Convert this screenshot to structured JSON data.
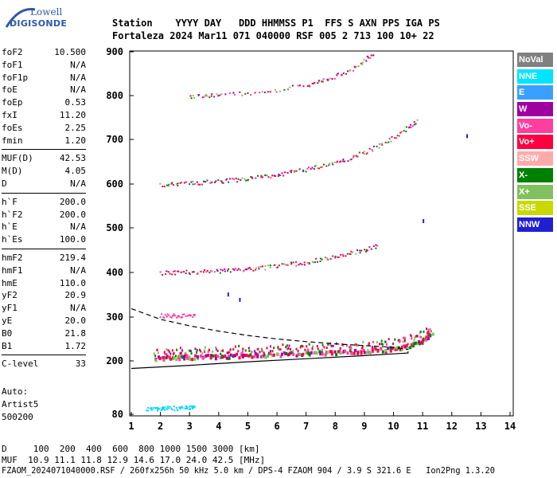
{
  "logo": {
    "line1": "Lowell",
    "line2": "DIGISONDE"
  },
  "header": {
    "row1": "Station    YYYY DAY   DDD HHMMSS P1  FFS S AXN PPS IGA PS",
    "row2": "Fortaleza 2024 Mar11 071 040000 RSF 005 2 713 100 10+ 22"
  },
  "params": {
    "group1": [
      {
        "name": "foF2",
        "value": "10.500"
      },
      {
        "name": "foF1",
        "value": "N/A"
      },
      {
        "name": "foF1p",
        "value": "N/A"
      },
      {
        "name": "foE",
        "value": "N/A"
      },
      {
        "name": "foEp",
        "value": "0.53"
      },
      {
        "name": "fxI",
        "value": "11.20"
      },
      {
        "name": "foEs",
        "value": "2.25"
      },
      {
        "name": "fmin",
        "value": "1.20"
      }
    ],
    "group2": [
      {
        "name": "MUF(D)",
        "value": "42.53"
      },
      {
        "name": "M(D)",
        "value": "4.05"
      },
      {
        "name": "D",
        "value": "N/A"
      }
    ],
    "group3": [
      {
        "name": "h`F",
        "value": "200.0"
      },
      {
        "name": "h`F2",
        "value": "200.0"
      },
      {
        "name": "h`E",
        "value": "N/A"
      },
      {
        "name": "h`Es",
        "value": "100.0"
      }
    ],
    "group4": [
      {
        "name": "hmF2",
        "value": "219.4"
      },
      {
        "name": "hmF1",
        "value": "N/A"
      },
      {
        "name": "hmE",
        "value": "110.0"
      },
      {
        "name": "yF2",
        "value": "20.9"
      },
      {
        "name": "yF1",
        "value": "N/A"
      },
      {
        "name": "yE",
        "value": "20.0"
      },
      {
        "name": "B0",
        "value": "21.8"
      },
      {
        "name": "B1",
        "value": "1.72"
      }
    ],
    "group5": [
      {
        "name": "C-level",
        "value": "33"
      }
    ]
  },
  "auto": {
    "line1": "Auto:",
    "line2": "Artist5",
    "line3": "500200"
  },
  "legend": [
    {
      "label": "NoVal",
      "bg": "#808080",
      "fg": "#ffffff"
    },
    {
      "label": "NNE",
      "bg": "#00e5ff",
      "fg": "#ffffff"
    },
    {
      "label": "E",
      "bg": "#3aa0ff",
      "fg": "#ffffff"
    },
    {
      "label": "W",
      "bg": "#a000a0",
      "fg": "#ffffff"
    },
    {
      "label": "Vo-",
      "bg": "#ff3fa0",
      "fg": "#ffffff"
    },
    {
      "label": "Vo+",
      "bg": "#ff0040",
      "fg": "#ffffff"
    },
    {
      "label": "SSW",
      "bg": "#ffaaaa",
      "fg": "#ffffff"
    },
    {
      "label": "X-",
      "bg": "#008000",
      "fg": "#ffffff"
    },
    {
      "label": "X+",
      "bg": "#80c060",
      "fg": "#ffffff"
    },
    {
      "label": "SSE",
      "bg": "#c8d800",
      "fg": "#ffffff"
    },
    {
      "label": "NNW",
      "bg": "#2020d0",
      "fg": "#ffffff"
    }
  ],
  "footer": {
    "distance_row": "D     100  200  400  600  800 1000 1500 3000 [km]",
    "muf_row": "MUF  10.9 11.1 11.8 12.9 14.6 17.0 24.0 42.5 [MHz]",
    "file_row": "FZAOM_2024071040000.RSF / 260fx256h 50 kHz 5.0 km / DPS-4 FZAOM 904 / 3.9 S 321.6 E   Ion2Png 1.3.20"
  },
  "chart_data": {
    "type": "scatter",
    "title": "",
    "xlabel": "",
    "ylabel": "",
    "xlim": [
      1,
      14
    ],
    "ylim": [
      80,
      900
    ],
    "x_ticks": [
      1,
      2,
      3,
      4,
      5,
      6,
      7,
      8,
      9,
      10,
      11,
      12,
      13,
      14
    ],
    "y_ticks": [
      80,
      200,
      300,
      400,
      500,
      600,
      700,
      800,
      900
    ],
    "grid": false,
    "legend_position": "right",
    "series": [
      {
        "name": "F-trace 1st hop",
        "color": "#e8004a",
        "points": [
          [
            1.8,
            208
          ],
          [
            2.2,
            210
          ],
          [
            2.6,
            210
          ],
          [
            3.0,
            211
          ],
          [
            3.5,
            212
          ],
          [
            4.0,
            213
          ],
          [
            4.5,
            214
          ],
          [
            5.0,
            215
          ],
          [
            5.5,
            216
          ],
          [
            6.0,
            217
          ],
          [
            6.5,
            219
          ],
          [
            7.0,
            220
          ],
          [
            7.5,
            221
          ],
          [
            8.0,
            222
          ],
          [
            8.5,
            224
          ],
          [
            9.0,
            225
          ],
          [
            9.5,
            227
          ],
          [
            10.0,
            230
          ],
          [
            10.4,
            234
          ],
          [
            10.8,
            242
          ],
          [
            11.1,
            255
          ],
          [
            11.3,
            262
          ]
        ]
      },
      {
        "name": "F-trace 2nd hop",
        "color": "#e8004a",
        "points": [
          [
            2.0,
            400
          ],
          [
            2.5,
            401
          ],
          [
            3.0,
            402
          ],
          [
            3.5,
            403
          ],
          [
            4.0,
            405
          ],
          [
            4.5,
            407
          ],
          [
            5.0,
            409
          ],
          [
            5.5,
            412
          ],
          [
            6.0,
            416
          ],
          [
            6.5,
            420
          ],
          [
            7.0,
            424
          ],
          [
            7.5,
            430
          ],
          [
            8.0,
            436
          ],
          [
            8.5,
            444
          ],
          [
            9.0,
            452
          ],
          [
            9.5,
            462
          ]
        ]
      },
      {
        "name": "F-trace 3rd hop",
        "color": "#e8004a",
        "points": [
          [
            2.0,
            600
          ],
          [
            2.5,
            601
          ],
          [
            3.0,
            603
          ],
          [
            3.5,
            605
          ],
          [
            4.0,
            607
          ],
          [
            4.5,
            610
          ],
          [
            5.0,
            613
          ],
          [
            5.5,
            617
          ],
          [
            6.0,
            622
          ],
          [
            6.5,
            628
          ],
          [
            7.0,
            634
          ],
          [
            7.5,
            642
          ],
          [
            8.0,
            650
          ],
          [
            8.5,
            660
          ],
          [
            9.0,
            672
          ],
          [
            9.5,
            688
          ],
          [
            10.0,
            705
          ],
          [
            10.5,
            730
          ],
          [
            10.8,
            745
          ]
        ]
      },
      {
        "name": "F-trace 4th hop",
        "color": "#e8004a",
        "points": [
          [
            3.0,
            800
          ],
          [
            3.5,
            801
          ],
          [
            4.0,
            803
          ],
          [
            5.0,
            807
          ],
          [
            6.0,
            814
          ],
          [
            7.0,
            826
          ],
          [
            7.5,
            835
          ],
          [
            8.0,
            846
          ],
          [
            8.5,
            860
          ],
          [
            9.0,
            880
          ],
          [
            9.3,
            900
          ]
        ]
      },
      {
        "name": "Es trace",
        "color": "#00d8ff",
        "points": [
          [
            1.5,
            92
          ],
          [
            1.8,
            93
          ],
          [
            2.0,
            94
          ],
          [
            2.2,
            95
          ],
          [
            2.5,
            95
          ],
          [
            2.8,
            96
          ],
          [
            3.0,
            96
          ],
          [
            3.2,
            96
          ]
        ]
      },
      {
        "name": "Es 2nd hop",
        "color": "#ff3fa0",
        "points": [
          [
            2.0,
            304
          ],
          [
            2.3,
            304
          ],
          [
            2.6,
            304
          ],
          [
            2.9,
            304
          ],
          [
            3.2,
            304
          ]
        ]
      },
      {
        "name": "Profile (solid)",
        "color": "#000000",
        "points": [
          [
            1.0,
            183
          ],
          [
            3.0,
            190
          ],
          [
            5.0,
            198
          ],
          [
            7.0,
            205
          ],
          [
            9.0,
            212
          ],
          [
            10.5,
            218
          ],
          [
            10.5,
            222
          ]
        ]
      },
      {
        "name": "Profile (dashed)",
        "color": "#000000",
        "points": [
          [
            1.0,
            319
          ],
          [
            2.0,
            295
          ],
          [
            3.0,
            280
          ],
          [
            4.0,
            268
          ],
          [
            5.0,
            258
          ],
          [
            6.0,
            250
          ],
          [
            7.0,
            244
          ],
          [
            8.0,
            239
          ],
          [
            9.0,
            235
          ],
          [
            10.0,
            231
          ],
          [
            10.5,
            226
          ]
        ]
      }
    ],
    "outliers": [
      [
        12.5,
        712
      ],
      [
        11.0,
        520
      ],
      [
        4.7,
        343
      ],
      [
        4.3,
        355
      ]
    ]
  }
}
